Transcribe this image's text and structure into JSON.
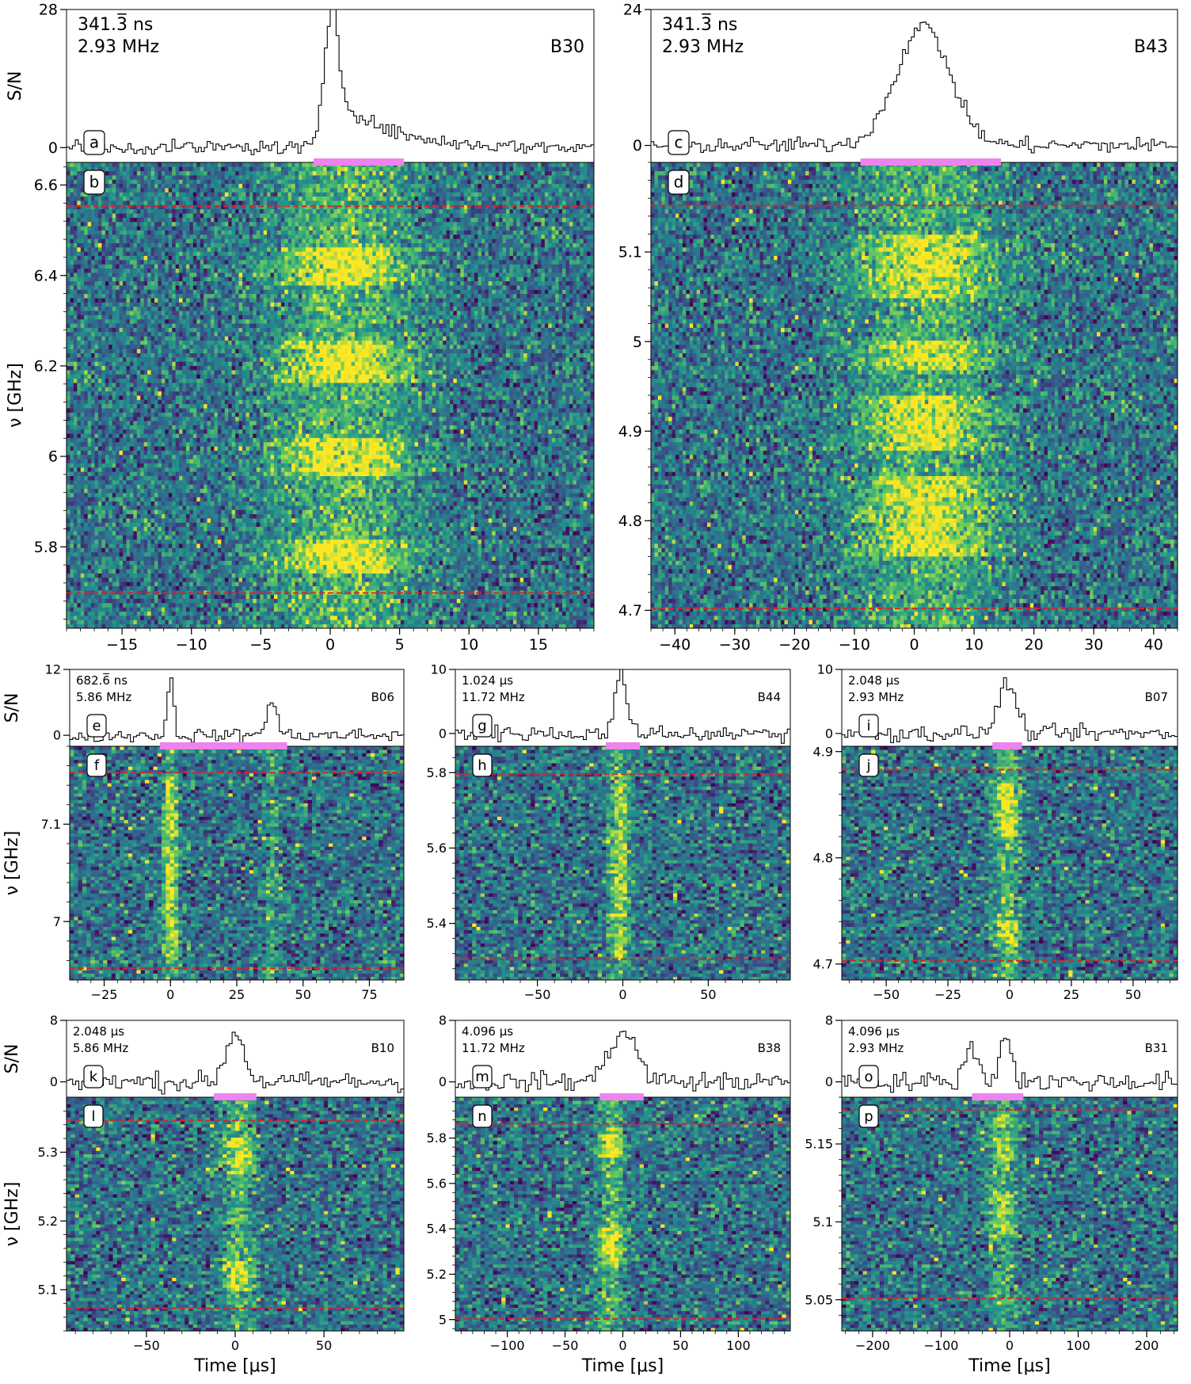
{
  "chart_data": [
    {
      "type": "heatmap",
      "burst": "B30",
      "resolution": {
        "time": "341.3̅ ns",
        "freq": "2.93 MHz"
      },
      "panel_labels": {
        "profile": "a",
        "dynspec": "b"
      },
      "profile": {
        "ylabel": "S/N",
        "ylim": [
          -3,
          28
        ],
        "yticks": [
          0,
          28
        ],
        "peaks": [
          {
            "t": 0.0,
            "amp": 26
          }
        ],
        "tail": [
          {
            "start": 0.0,
            "amp": 12,
            "decay": 3.5
          }
        ],
        "noise": 1.0
      },
      "dynspec": {
        "ylabel": "ν [GHz]",
        "ylim": [
          5.62,
          6.65
        ],
        "yticks": [
          5.8,
          6.0,
          6.2,
          6.4,
          6.6
        ],
        "hlines": [
          5.698,
          6.553
        ],
        "signal": {
          "center": 1.0,
          "width": 3.5,
          "bands": [
            [
              5.74,
              5.82
            ],
            [
              5.96,
              6.04
            ],
            [
              6.16,
              6.26
            ],
            [
              6.38,
              6.46
            ]
          ],
          "strength": 0.55
        }
      },
      "x": {
        "xlim": [
          -19,
          19
        ],
        "xticks": [
          -15,
          -10,
          -5,
          0,
          5,
          10,
          15
        ],
        "xlabel": ""
      },
      "highlight": [
        -1.2,
        5.3
      ]
    },
    {
      "type": "heatmap",
      "burst": "B43",
      "resolution": {
        "time": "341.3̅ ns",
        "freq": "2.93 MHz"
      },
      "panel_labels": {
        "profile": "c",
        "dynspec": "d"
      },
      "profile": {
        "ylabel": "",
        "ylim": [
          -3,
          24
        ],
        "yticks": [
          0,
          24
        ],
        "peaks": [
          {
            "t": 1.5,
            "amp": 21,
            "w": 4.5
          }
        ],
        "tail": [],
        "noise": 1.0
      },
      "dynspec": {
        "ylabel": "",
        "ylim": [
          4.68,
          5.2
        ],
        "yticks": [
          4.7,
          4.8,
          4.9,
          5.0,
          5.1
        ],
        "hlines": [
          4.702,
          5.152
        ],
        "signal": {
          "center": 2.0,
          "width": 8.0,
          "bands": [
            [
              4.88,
              4.94
            ],
            [
              4.97,
              5.0
            ],
            [
              5.05,
              5.12
            ],
            [
              4.76,
              4.85
            ]
          ],
          "strength": 0.5
        }
      },
      "x": {
        "xlim": [
          -44,
          44
        ],
        "xticks": [
          -40,
          -30,
          -20,
          -10,
          0,
          10,
          20,
          30,
          40
        ],
        "xlabel": ""
      },
      "highlight": [
        -9.0,
        14.5
      ]
    },
    {
      "type": "heatmap",
      "burst": "B06",
      "resolution": {
        "time": "682.6̅ ns",
        "freq": "5.86 MHz"
      },
      "panel_labels": {
        "profile": "e",
        "dynspec": "f"
      },
      "profile": {
        "ylabel": "S/N",
        "ylim": [
          -2,
          12
        ],
        "yticks": [
          0,
          12
        ],
        "peaks": [
          {
            "t": 0.0,
            "amp": 10,
            "w": 1.2
          },
          {
            "t": 38.0,
            "amp": 6,
            "w": 2.0
          }
        ],
        "tail": [],
        "noise": 0.9
      },
      "dynspec": {
        "ylabel": "ν [GHz]",
        "ylim": [
          6.94,
          7.18
        ],
        "yticks": [
          7.0,
          7.1
        ],
        "hlines": [
          6.952,
          7.153
        ],
        "signal": {
          "center": 0.0,
          "width": 2.0,
          "bands": [
            [
              6.96,
              7.15
            ]
          ],
          "strength": 0.45,
          "second": 38.0
        }
      },
      "x": {
        "xlim": [
          -38,
          88
        ],
        "xticks": [
          -25,
          0,
          25,
          50,
          75
        ],
        "xlabel": ""
      },
      "highlight": [
        -4.0,
        44.0
      ]
    },
    {
      "type": "heatmap",
      "burst": "B44",
      "resolution": {
        "time": "1.024 μs",
        "freq": "11.72 MHz"
      },
      "panel_labels": {
        "profile": "g",
        "dynspec": "h"
      },
      "profile": {
        "ylabel": "",
        "ylim": [
          -2,
          10
        ],
        "yticks": [
          0,
          10
        ],
        "peaks": [
          {
            "t": -2.0,
            "amp": 8,
            "w": 3.0
          }
        ],
        "tail": [
          {
            "start": -1.0,
            "amp": 3,
            "decay": 6.0
          }
        ],
        "noise": 0.9
      },
      "dynspec": {
        "ylabel": "",
        "ylim": [
          5.25,
          5.87
        ],
        "yticks": [
          5.4,
          5.6,
          5.8
        ],
        "hlines": [
          5.305,
          5.796
        ],
        "signal": {
          "center": -2.0,
          "width": 4.0,
          "bands": [
            [
              5.3,
              5.8
            ]
          ],
          "strength": 0.4
        }
      },
      "x": {
        "xlim": [
          -98,
          98
        ],
        "xticks": [
          -50,
          0,
          50
        ],
        "xlabel": ""
      },
      "highlight": [
        -10.0,
        10.0
      ]
    },
    {
      "type": "heatmap",
      "burst": "B07",
      "resolution": {
        "time": "2.048 μs",
        "freq": "2.93 MHz"
      },
      "panel_labels": {
        "profile": "i",
        "dynspec": "j"
      },
      "profile": {
        "ylabel": "",
        "ylim": [
          -2,
          10
        ],
        "yticks": [
          0,
          10
        ],
        "peaks": [
          {
            "t": -1.0,
            "amp": 8,
            "w": 3.5
          }
        ],
        "tail": [],
        "noise": 0.9
      },
      "dynspec": {
        "ylabel": "",
        "ylim": [
          4.685,
          4.905
        ],
        "yticks": [
          4.7,
          4.8,
          4.9
        ],
        "hlines": [
          4.703,
          4.883
        ],
        "signal": {
          "center": -1.0,
          "width": 3.5,
          "bands": [
            [
              4.72,
              4.74
            ],
            [
              4.82,
              4.87
            ]
          ],
          "strength": 0.55
        }
      },
      "x": {
        "xlim": [
          -68,
          68
        ],
        "xticks": [
          -50,
          -25,
          0,
          25,
          50
        ],
        "xlabel": ""
      },
      "highlight": [
        -7.0,
        5.0
      ]
    },
    {
      "type": "heatmap",
      "burst": "B10",
      "resolution": {
        "time": "2.048 μs",
        "freq": "5.86 MHz"
      },
      "panel_labels": {
        "profile": "k",
        "dynspec": "l"
      },
      "profile": {
        "ylabel": "S/N",
        "ylim": [
          -2,
          8
        ],
        "yticks": [
          0,
          8
        ],
        "peaks": [
          {
            "t": 0.0,
            "amp": 6.5,
            "w": 5.0
          }
        ],
        "tail": [],
        "noise": 0.9
      },
      "dynspec": {
        "ylabel": "ν [GHz]",
        "ylim": [
          5.04,
          5.38
        ],
        "yticks": [
          5.1,
          5.2,
          5.3
        ],
        "hlines": [
          5.073,
          5.346
        ],
        "signal": {
          "center": 2.0,
          "width": 6.0,
          "bands": [
            [
              5.1,
              5.14
            ],
            [
              5.27,
              5.32
            ]
          ],
          "strength": 0.5
        }
      },
      "x": {
        "xlim": [
          -95,
          95
        ],
        "xticks": [
          -50,
          0,
          50
        ],
        "xlabel": "Time [μs]"
      },
      "highlight": [
        -12.0,
        12.0
      ]
    },
    {
      "type": "heatmap",
      "burst": "B38",
      "resolution": {
        "time": "4.096 μs",
        "freq": "11.72 MHz"
      },
      "panel_labels": {
        "profile": "m",
        "dynspec": "n"
      },
      "profile": {
        "ylabel": "",
        "ylim": [
          -2,
          8
        ],
        "yticks": [
          0,
          8
        ],
        "peaks": [
          {
            "t": 0.0,
            "amp": 6.5,
            "w": 12.0
          }
        ],
        "tail": [],
        "noise": 0.9
      },
      "dynspec": {
        "ylabel": "",
        "ylim": [
          4.95,
          5.98
        ],
        "yticks": [
          5.0,
          5.2,
          5.4,
          5.6,
          5.8
        ],
        "hlines": [
          5.003,
          5.863
        ],
        "signal": {
          "center": -10.0,
          "width": 8.0,
          "bands": [
            [
              5.72,
              5.82
            ],
            [
              5.25,
              5.4
            ]
          ],
          "strength": 0.55
        }
      },
      "x": {
        "xlim": [
          -145,
          145
        ],
        "xticks": [
          -100,
          -50,
          0,
          50,
          100
        ],
        "xlabel": "Time [μs]"
      },
      "highlight": [
        -20.0,
        18.0
      ]
    },
    {
      "type": "heatmap",
      "burst": "B31",
      "resolution": {
        "time": "4.096 μs",
        "freq": "2.93 MHz"
      },
      "panel_labels": {
        "profile": "o",
        "dynspec": "p"
      },
      "profile": {
        "ylabel": "",
        "ylim": [
          -2,
          8
        ],
        "yticks": [
          0,
          8
        ],
        "peaks": [
          {
            "t": -55.0,
            "amp": 4.5,
            "w": 10.0
          },
          {
            "t": -5.0,
            "amp": 6.5,
            "w": 8.0
          }
        ],
        "tail": [],
        "noise": 0.9
      },
      "dynspec": {
        "ylabel": "",
        "ylim": [
          5.03,
          5.18
        ],
        "yticks": [
          5.05,
          5.1,
          5.15
        ],
        "hlines": [
          5.051,
          5.172
        ],
        "signal": {
          "center": -10.0,
          "width": 14.0,
          "bands": [
            [
              5.09,
              5.12
            ],
            [
              5.14,
              5.17
            ]
          ],
          "strength": 0.4
        }
      },
      "x": {
        "xlim": [
          -245,
          245
        ],
        "xticks": [
          -200,
          -100,
          0,
          100,
          200
        ],
        "xlabel": "Time [μs]"
      },
      "highlight": [
        -55.0,
        20.0
      ]
    }
  ],
  "colors": {
    "highlight": "#ee82ee",
    "dashed_line": "#d62728",
    "colormap": [
      "#440154",
      "#3b528b",
      "#21918c",
      "#5ec962",
      "#fde725"
    ]
  }
}
